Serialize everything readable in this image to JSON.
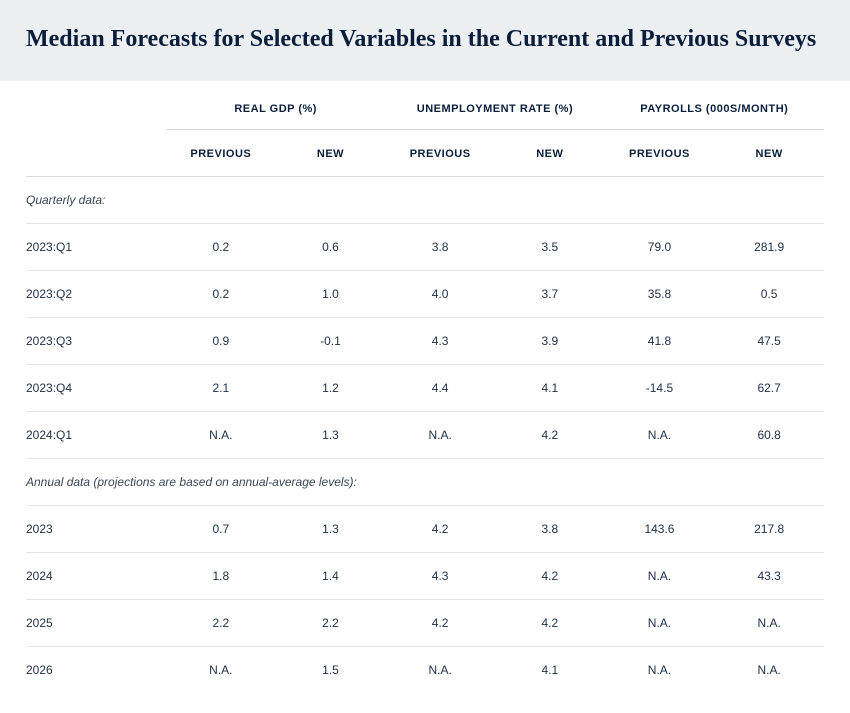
{
  "title": "Median Forecasts for Selected Variables in the Current and Previous Surveys",
  "groups": [
    {
      "label": "REAL GDP (%)"
    },
    {
      "label": "UNEMPLOYMENT RATE (%)"
    },
    {
      "label": "PAYROLLS (000S/MONTH)"
    }
  ],
  "subcols": {
    "previous": "PREVIOUS",
    "new": "NEW"
  },
  "sections": [
    {
      "heading": "Quarterly data:",
      "rows": [
        {
          "label": "2023:Q1",
          "cells": [
            "0.2",
            "0.6",
            "3.8",
            "3.5",
            "79.0",
            "281.9"
          ]
        },
        {
          "label": "2023:Q2",
          "cells": [
            "0.2",
            "1.0",
            "4.0",
            "3.7",
            "35.8",
            "0.5"
          ]
        },
        {
          "label": "2023:Q3",
          "cells": [
            "0.9",
            "-0.1",
            "4.3",
            "3.9",
            "41.8",
            "47.5"
          ]
        },
        {
          "label": "2023:Q4",
          "cells": [
            "2.1",
            "1.2",
            "4.4",
            "4.1",
            "-14.5",
            "62.7"
          ]
        },
        {
          "label": "2024:Q1",
          "cells": [
            "N.A.",
            "1.3",
            "N.A.",
            "4.2",
            "N.A.",
            "60.8"
          ]
        }
      ]
    },
    {
      "heading": "Annual data (projections are based on annual-average levels):",
      "rows": [
        {
          "label": "2023",
          "cells": [
            "0.7",
            "1.3",
            "4.2",
            "3.8",
            "143.6",
            "217.8"
          ]
        },
        {
          "label": "2024",
          "cells": [
            "1.8",
            "1.4",
            "4.3",
            "4.2",
            "N.A.",
            "43.3"
          ]
        },
        {
          "label": "2025",
          "cells": [
            "2.2",
            "2.2",
            "4.2",
            "4.2",
            "N.A.",
            "N.A."
          ]
        },
        {
          "label": "2026",
          "cells": [
            "N.A.",
            "1.5",
            "N.A.",
            "4.1",
            "N.A.",
            "N.A."
          ]
        }
      ]
    }
  ],
  "style": {
    "header_bg": "#eceff2",
    "title_color": "#0a1e3c",
    "border_color": "#e3e6e9",
    "group_border": "#d6dade",
    "text_color": "#223149"
  }
}
